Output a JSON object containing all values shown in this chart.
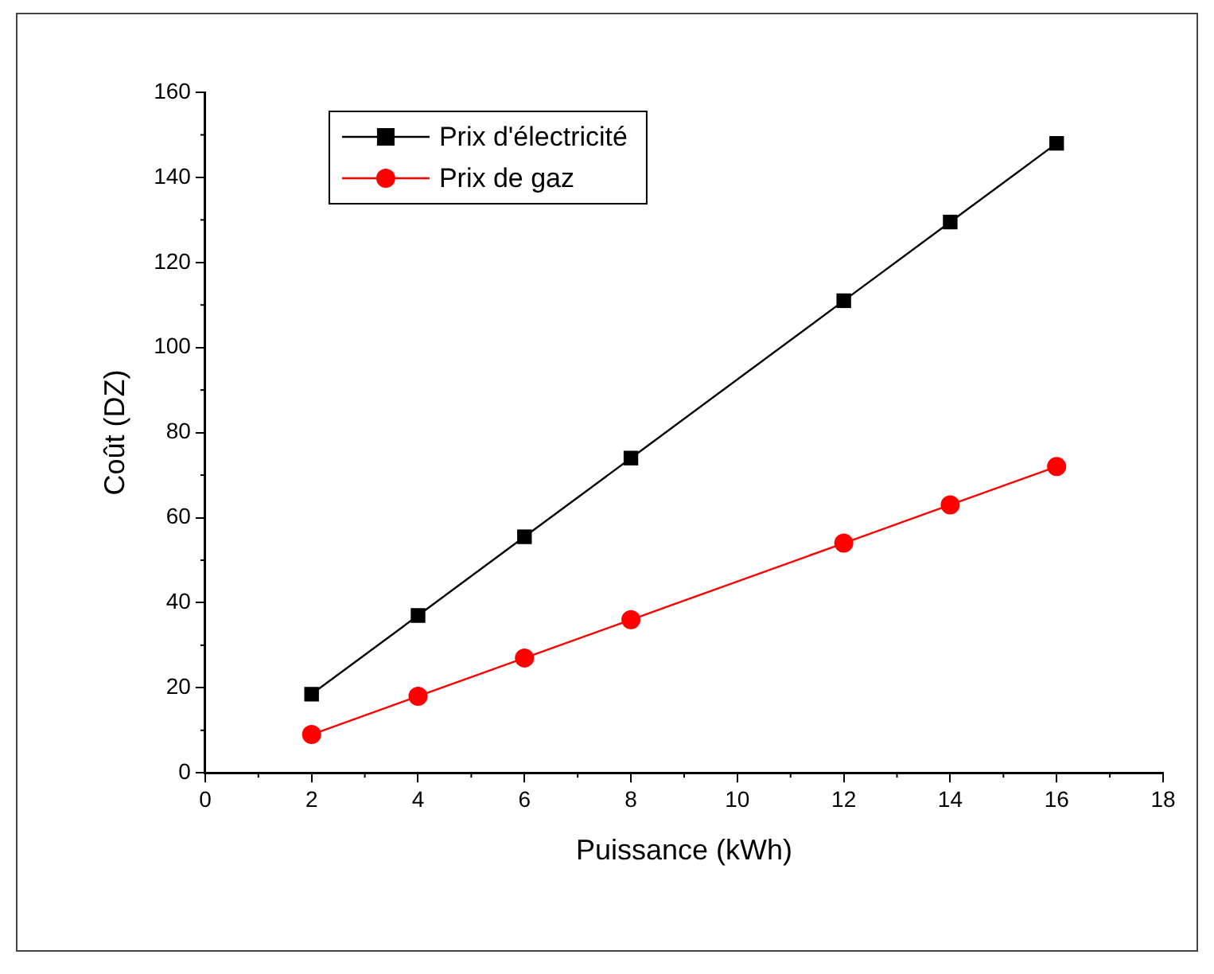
{
  "chart_data": {
    "type": "line",
    "xlabel": "Puissance (kWh)",
    "ylabel": "Coût (DZ)",
    "x": [
      2,
      4,
      6,
      8,
      12,
      14,
      16
    ],
    "series": [
      {
        "name": "Prix d'électricité",
        "color": "#000000",
        "marker": "square",
        "values": [
          18.5,
          37,
          55.5,
          74,
          111,
          129.5,
          148
        ]
      },
      {
        "name": "Prix de gaz",
        "color": "#ff0000",
        "marker": "circle",
        "values": [
          9,
          18,
          27,
          36,
          54,
          63,
          72
        ]
      }
    ],
    "xlim": [
      0,
      18
    ],
    "xticks": [
      0,
      2,
      4,
      6,
      8,
      10,
      12,
      14,
      16,
      18
    ],
    "ylim": [
      0,
      160
    ],
    "yticks": [
      0,
      20,
      40,
      60,
      80,
      100,
      120,
      140,
      160
    ],
    "grid": false,
    "legend": "top left",
    "line_style": "solid"
  }
}
